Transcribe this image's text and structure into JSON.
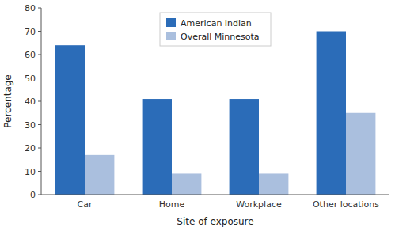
{
  "chart_data": {
    "type": "bar",
    "categories": [
      "Car",
      "Home",
      "Workplace",
      "Other locations"
    ],
    "series": [
      {
        "name": "American Indian",
        "color": "#2B6CB8",
        "values": [
          64,
          41,
          41,
          70
        ]
      },
      {
        "name": "Overall Minnesota",
        "color": "#AABFDE",
        "values": [
          17,
          9,
          9,
          35
        ]
      }
    ],
    "xlabel": "Site of exposure",
    "ylabel": "Percentage",
    "ylim": [
      0,
      80
    ],
    "yticks": [
      0,
      10,
      20,
      30,
      40,
      50,
      60,
      70,
      80
    ],
    "grid": false,
    "legend": "top"
  }
}
